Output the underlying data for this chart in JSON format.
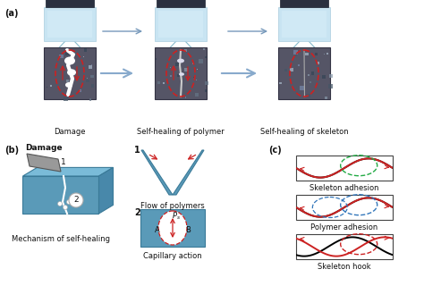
{
  "title_a": "(a)",
  "title_b": "(b)",
  "title_c": "(c)",
  "label_damage": "Damage",
  "label_polymer": "Self-healing of polymer",
  "label_skeleton": "Self-healing of skeleton",
  "label_mech": "Mechanism of self-healing",
  "label_flow": "Flow of polymers",
  "label_cap": "Capillary action",
  "label_skel_adh": "Skeleton adhesion",
  "label_poly_adh": "Polymer adhesion",
  "label_skel_hook": "Skeleton hook",
  "label_damage2": "Damage",
  "bg_color": "#f0f0f0",
  "blue_block": "#7ab4cc",
  "blue_dark": "#5a8faa",
  "blue_light": "#a8d0e4",
  "ice_color": "#c8e4f2",
  "dark_mat": "#2a3040",
  "red_col": "#cc2222",
  "black": "#111111",
  "gray_med": "#999999",
  "gray_dark": "#555555",
  "gray_plate": "#888888",
  "green_circ": "#22aa44",
  "blue_circ": "#3377bb",
  "arrow_blue": "#7799bb"
}
